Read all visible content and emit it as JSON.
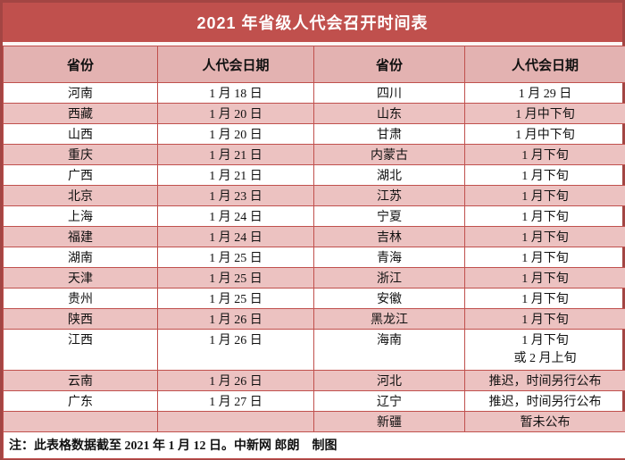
{
  "title": "2021 年省级人代会召开时间表",
  "table": {
    "columns": [
      "省份",
      "人代会日期",
      "省份",
      "人代会日期"
    ],
    "rows": [
      {
        "cells": [
          "河南",
          "1 月 18 日",
          "四川",
          "1 月 29 日"
        ]
      },
      {
        "cells": [
          "西藏",
          "1 月 20 日",
          "山东",
          "1 月中下旬"
        ]
      },
      {
        "cells": [
          "山西",
          "1 月 20 日",
          "甘肃",
          "1 月中下旬"
        ]
      },
      {
        "cells": [
          "重庆",
          "1 月 21 日",
          "内蒙古",
          "1 月下旬"
        ]
      },
      {
        "cells": [
          "广西",
          "1 月 21 日",
          "湖北",
          "1 月下旬"
        ]
      },
      {
        "cells": [
          "北京",
          "1 月 23 日",
          "江苏",
          "1 月下旬"
        ]
      },
      {
        "cells": [
          "上海",
          "1 月 24 日",
          "宁夏",
          "1 月下旬"
        ]
      },
      {
        "cells": [
          "福建",
          "1 月 24 日",
          "吉林",
          "1 月下旬"
        ]
      },
      {
        "cells": [
          "湖南",
          "1 月 25 日",
          "青海",
          "1 月下旬"
        ]
      },
      {
        "cells": [
          "天津",
          "1 月 25 日",
          "浙江",
          "1 月下旬"
        ]
      },
      {
        "cells": [
          "贵州",
          "1 月 25 日",
          "安徽",
          "1 月下旬"
        ]
      },
      {
        "cells": [
          "陕西",
          "1 月 26 日",
          "黑龙江",
          "1 月下旬"
        ]
      },
      {
        "cells": [
          "江西",
          "1 月 26 日",
          "海南",
          "1 月下旬\n或 2 月上旬"
        ],
        "tall": true
      },
      {
        "cells": [
          "云南",
          "1 月 26 日",
          "河北",
          "推迟，时间另行公布"
        ]
      },
      {
        "cells": [
          "广东",
          "1 月 27 日",
          "辽宁",
          "推迟，时间另行公布"
        ]
      },
      {
        "cells": [
          "",
          "",
          "新疆",
          "暂未公布"
        ],
        "short": true
      }
    ],
    "note": "注：此表格数据截至 2021 年 1 月 12 日。中新网 郎朗　制图"
  },
  "colors": {
    "band": "#c0504d",
    "line": "#c0504d",
    "outer_border": "#a34543",
    "header_bg": "#e3b2b1",
    "alt_row_bg": "#ecc2c1",
    "title_text": "#ffffff",
    "text": "#111111"
  }
}
